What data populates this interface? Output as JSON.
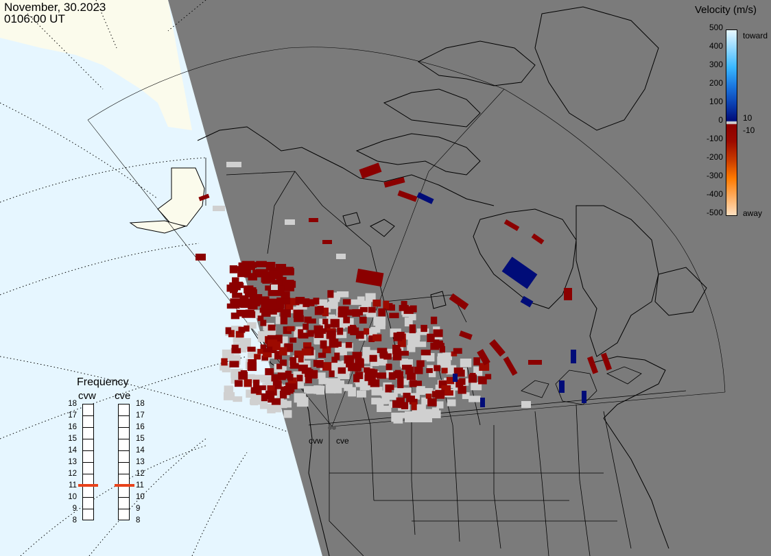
{
  "header": {
    "date": "November, 30.2023",
    "time": "0106:00 UT"
  },
  "legend": {
    "title": "Velocity (m/s)",
    "ticks": [
      "500",
      "400",
      "300",
      "200",
      "100",
      "0",
      "-100",
      "-200",
      "-300",
      "-400",
      "-500"
    ],
    "side_labels": [
      "toward",
      "10",
      "-10",
      "away"
    ],
    "colors": {
      "toward_500": "#e8f8ff",
      "toward_300": "#3ab8ff",
      "toward_200": "#1b78e0",
      "toward_100": "#0b3fb0",
      "toward_10": "#000c78",
      "zero_band": "#d0d0d0",
      "away_10": "#8b0000",
      "away_100": "#9c0a00",
      "away_200": "#c83a00",
      "away_300": "#ff7a00",
      "away_500": "#ffe0c0"
    }
  },
  "frequency": {
    "title": "Frequency",
    "radars": [
      "cvw",
      "cve"
    ],
    "scale": [
      "18",
      "17",
      "16",
      "15",
      "14",
      "13",
      "12",
      "11",
      "10",
      "9",
      "8"
    ],
    "selected_mhz": [
      11,
      11
    ]
  },
  "sites": [
    "cvw",
    "cve"
  ],
  "map_colors": {
    "night": "#7b7b7b",
    "day_ocean": "#e6f6ff",
    "day_land": "#fbfbec",
    "coast": "#000000",
    "grid": "#000000",
    "ground_scatter": "#d2d2d2"
  }
}
